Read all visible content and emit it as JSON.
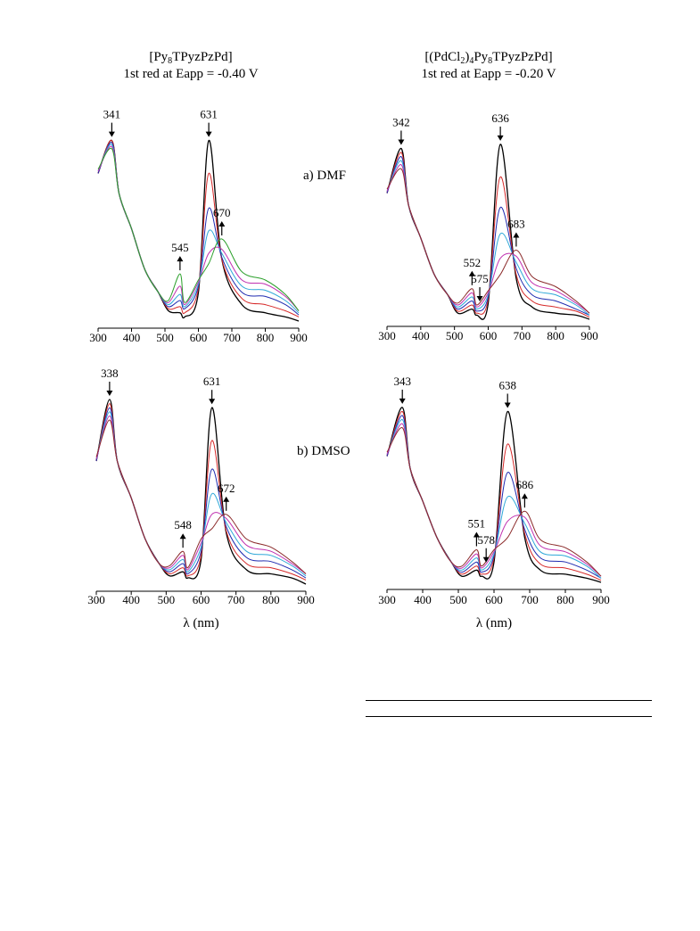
{
  "column_titles": [
    {
      "line1": "[Py8TPyzPzPd]",
      "line2": "1st red at Eapp = -0.40 V"
    },
    {
      "line1": "[(PdCl2)4Py8TPyzPzPd]",
      "line2": "1st red at Eapp = -0.20 V"
    }
  ],
  "solvent_labels": [
    "a) DMF",
    "b)  DMSO"
  ],
  "series_colors": [
    "#000000",
    "#d62828",
    "#e07aa8",
    "#1f2bb0",
    "#6a58c8",
    "#2ea8d8",
    "#c030b0",
    "#2ca02c",
    "#8b2a2a"
  ],
  "chart_data": [
    {
      "type": "line",
      "panel": "a-left",
      "xlabel": "",
      "xlim": [
        300,
        900
      ],
      "xticks": [
        300,
        400,
        500,
        600,
        700,
        800,
        900
      ],
      "uv_peak": 341,
      "q_peak": 631,
      "new_bands": [
        545,
        670
      ],
      "annotations": [
        {
          "label": "341",
          "x": 341,
          "direction": "down"
        },
        {
          "label": "631",
          "x": 631,
          "direction": "down"
        },
        {
          "label": "545",
          "x": 545,
          "direction": "up"
        },
        {
          "label": "670",
          "x": 670,
          "direction": "up"
        }
      ],
      "series": [
        {
          "color": "#000000",
          "values": [
            0.72,
            0.88,
            0.62,
            0.45,
            0.25,
            0.14,
            0.05,
            0.04,
            0.02,
            0.14,
            0.88,
            0.3,
            0.08,
            0.04,
            0.02,
            0.0
          ]
        },
        {
          "color": "#d62828",
          "values": [
            0.72,
            0.88,
            0.62,
            0.45,
            0.25,
            0.14,
            0.06,
            0.07,
            0.04,
            0.16,
            0.72,
            0.3,
            0.11,
            0.08,
            0.05,
            0.02
          ]
        },
        {
          "color": "#1f2bb0",
          "values": [
            0.72,
            0.87,
            0.62,
            0.45,
            0.25,
            0.14,
            0.07,
            0.1,
            0.06,
            0.17,
            0.55,
            0.31,
            0.14,
            0.12,
            0.08,
            0.03
          ]
        },
        {
          "color": "#2ea8d8",
          "values": [
            0.73,
            0.86,
            0.62,
            0.45,
            0.25,
            0.14,
            0.08,
            0.13,
            0.07,
            0.18,
            0.44,
            0.33,
            0.17,
            0.15,
            0.1,
            0.04
          ]
        },
        {
          "color": "#c030b0",
          "values": [
            0.73,
            0.85,
            0.62,
            0.45,
            0.25,
            0.14,
            0.09,
            0.17,
            0.08,
            0.19,
            0.33,
            0.35,
            0.2,
            0.18,
            0.12,
            0.05
          ]
        },
        {
          "color": "#2ca02c",
          "values": [
            0.74,
            0.84,
            0.62,
            0.45,
            0.25,
            0.14,
            0.1,
            0.23,
            0.09,
            0.2,
            0.28,
            0.4,
            0.24,
            0.2,
            0.13,
            0.05
          ]
        }
      ]
    },
    {
      "type": "line",
      "panel": "a-right",
      "xlabel": "",
      "xlim": [
        300,
        900
      ],
      "xticks": [
        300,
        400,
        500,
        600,
        700,
        800,
        900
      ],
      "uv_peak": 342,
      "q_peak": 636,
      "new_bands": [
        552,
        683
      ],
      "annotations": [
        {
          "label": "342",
          "x": 342,
          "direction": "down"
        },
        {
          "label": "636",
          "x": 636,
          "direction": "down"
        },
        {
          "label": "552",
          "x": 552,
          "direction": "up"
        },
        {
          "label": "575",
          "x": 575,
          "direction": "down"
        },
        {
          "label": "683",
          "x": 683,
          "direction": "up"
        }
      ],
      "series": [
        {
          "color": "#000000",
          "values": [
            0.62,
            0.84,
            0.56,
            0.4,
            0.22,
            0.12,
            0.03,
            0.05,
            0.02,
            0.08,
            0.86,
            0.2,
            0.06,
            0.03,
            0.02,
            0.0
          ]
        },
        {
          "color": "#d62828",
          "values": [
            0.62,
            0.82,
            0.56,
            0.4,
            0.22,
            0.12,
            0.04,
            0.07,
            0.03,
            0.1,
            0.7,
            0.22,
            0.09,
            0.06,
            0.04,
            0.01
          ]
        },
        {
          "color": "#1f2bb0",
          "values": [
            0.62,
            0.8,
            0.56,
            0.4,
            0.22,
            0.12,
            0.05,
            0.09,
            0.04,
            0.11,
            0.55,
            0.25,
            0.12,
            0.09,
            0.05,
            0.02
          ]
        },
        {
          "color": "#2ea8d8",
          "values": [
            0.63,
            0.78,
            0.56,
            0.4,
            0.22,
            0.12,
            0.06,
            0.11,
            0.05,
            0.12,
            0.42,
            0.28,
            0.15,
            0.12,
            0.07,
            0.02
          ]
        },
        {
          "color": "#c030b0",
          "values": [
            0.63,
            0.76,
            0.56,
            0.4,
            0.22,
            0.12,
            0.07,
            0.13,
            0.06,
            0.13,
            0.3,
            0.31,
            0.18,
            0.14,
            0.08,
            0.03
          ]
        },
        {
          "color": "#8b2a2a",
          "values": [
            0.64,
            0.74,
            0.56,
            0.4,
            0.22,
            0.12,
            0.08,
            0.15,
            0.07,
            0.14,
            0.22,
            0.34,
            0.21,
            0.16,
            0.09,
            0.03
          ]
        }
      ]
    },
    {
      "type": "line",
      "panel": "b-left",
      "xlabel": "λ (nm)",
      "xlim": [
        300,
        900
      ],
      "xticks": [
        300,
        400,
        500,
        600,
        700,
        800,
        900
      ],
      "uv_peak": 338,
      "q_peak": 631,
      "new_bands": [
        548,
        672
      ],
      "annotations": [
        {
          "label": "338",
          "x": 338,
          "direction": "down"
        },
        {
          "label": "631",
          "x": 631,
          "direction": "down"
        },
        {
          "label": "548",
          "x": 548,
          "direction": "up"
        },
        {
          "label": "672",
          "x": 672,
          "direction": "up"
        }
      ],
      "series": [
        {
          "color": "#000000",
          "values": [
            0.6,
            0.9,
            0.6,
            0.42,
            0.22,
            0.1,
            0.04,
            0.06,
            0.03,
            0.12,
            0.86,
            0.25,
            0.07,
            0.05,
            0.03,
            0.0
          ]
        },
        {
          "color": "#d62828",
          "values": [
            0.6,
            0.88,
            0.6,
            0.42,
            0.22,
            0.1,
            0.05,
            0.08,
            0.04,
            0.14,
            0.7,
            0.26,
            0.1,
            0.08,
            0.05,
            0.02
          ]
        },
        {
          "color": "#1f2bb0",
          "values": [
            0.6,
            0.86,
            0.6,
            0.42,
            0.22,
            0.1,
            0.06,
            0.1,
            0.05,
            0.16,
            0.56,
            0.28,
            0.13,
            0.11,
            0.07,
            0.03
          ]
        },
        {
          "color": "#2ea8d8",
          "values": [
            0.61,
            0.84,
            0.6,
            0.42,
            0.22,
            0.1,
            0.07,
            0.12,
            0.06,
            0.18,
            0.44,
            0.3,
            0.16,
            0.14,
            0.09,
            0.04
          ]
        },
        {
          "color": "#c030b0",
          "values": [
            0.61,
            0.82,
            0.6,
            0.42,
            0.22,
            0.1,
            0.08,
            0.14,
            0.07,
            0.2,
            0.34,
            0.32,
            0.19,
            0.16,
            0.1,
            0.05
          ]
        },
        {
          "color": "#8b2a2a",
          "values": [
            0.62,
            0.8,
            0.6,
            0.42,
            0.22,
            0.1,
            0.09,
            0.16,
            0.08,
            0.22,
            0.27,
            0.34,
            0.22,
            0.18,
            0.11,
            0.05
          ]
        }
      ]
    },
    {
      "type": "line",
      "panel": "b-right",
      "xlabel": "λ (nm)",
      "xlim": [
        300,
        900
      ],
      "xticks": [
        300,
        400,
        500,
        600,
        700,
        800,
        900
      ],
      "uv_peak": 343,
      "q_peak": 638,
      "new_bands": [
        551,
        686
      ],
      "annotations": [
        {
          "label": "343",
          "x": 343,
          "direction": "down"
        },
        {
          "label": "638",
          "x": 638,
          "direction": "down"
        },
        {
          "label": "551",
          "x": 551,
          "direction": "up"
        },
        {
          "label": "578",
          "x": 578,
          "direction": "down"
        },
        {
          "label": "686",
          "x": 686,
          "direction": "up"
        }
      ],
      "series": [
        {
          "color": "#000000",
          "values": [
            0.62,
            0.86,
            0.56,
            0.4,
            0.22,
            0.1,
            0.03,
            0.06,
            0.03,
            0.1,
            0.84,
            0.22,
            0.06,
            0.04,
            0.02,
            0.0
          ]
        },
        {
          "color": "#d62828",
          "values": [
            0.62,
            0.84,
            0.56,
            0.4,
            0.22,
            0.1,
            0.04,
            0.08,
            0.04,
            0.12,
            0.68,
            0.24,
            0.09,
            0.07,
            0.04,
            0.01
          ]
        },
        {
          "color": "#1f2bb0",
          "values": [
            0.62,
            0.82,
            0.56,
            0.4,
            0.22,
            0.1,
            0.05,
            0.1,
            0.05,
            0.13,
            0.54,
            0.26,
            0.12,
            0.1,
            0.06,
            0.02
          ]
        },
        {
          "color": "#2ea8d8",
          "values": [
            0.63,
            0.8,
            0.56,
            0.4,
            0.22,
            0.1,
            0.06,
            0.12,
            0.06,
            0.14,
            0.42,
            0.29,
            0.15,
            0.13,
            0.08,
            0.02
          ]
        },
        {
          "color": "#c030b0",
          "values": [
            0.63,
            0.78,
            0.56,
            0.4,
            0.22,
            0.1,
            0.07,
            0.14,
            0.07,
            0.15,
            0.3,
            0.32,
            0.18,
            0.15,
            0.09,
            0.03
          ]
        },
        {
          "color": "#8b2a2a",
          "values": [
            0.64,
            0.76,
            0.56,
            0.4,
            0.22,
            0.1,
            0.08,
            0.16,
            0.08,
            0.16,
            0.22,
            0.35,
            0.21,
            0.17,
            0.1,
            0.03
          ]
        }
      ]
    }
  ]
}
